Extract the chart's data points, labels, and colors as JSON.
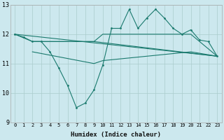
{
  "xlabel": "Humidex (Indice chaleur)",
  "xlim": [
    -0.5,
    23.5
  ],
  "ylim": [
    9,
    13
  ],
  "yticks": [
    9,
    10,
    11,
    12,
    13
  ],
  "xticks": [
    0,
    1,
    2,
    3,
    4,
    5,
    6,
    7,
    8,
    9,
    10,
    11,
    12,
    13,
    14,
    15,
    16,
    17,
    18,
    19,
    20,
    21,
    22,
    23
  ],
  "bg_color": "#cce8ee",
  "grid_color": "#aacccc",
  "line_color": "#1a7a6e",
  "curve_x": [
    0,
    1,
    2,
    3,
    4,
    5,
    6,
    7,
    8,
    9,
    10,
    11,
    12,
    13,
    14,
    15,
    16,
    17,
    18,
    19,
    20,
    21,
    22,
    23
  ],
  "curve_y": [
    12.0,
    11.9,
    11.75,
    11.75,
    11.4,
    10.85,
    10.25,
    9.5,
    9.65,
    10.1,
    10.95,
    12.2,
    12.2,
    12.85,
    12.2,
    12.55,
    12.85,
    12.55,
    12.2,
    12.0,
    12.15,
    11.8,
    11.75,
    11.25
  ],
  "line1_x": [
    0,
    23
  ],
  "line1_y": [
    12.0,
    11.25
  ],
  "line2_x": [
    0,
    2,
    9,
    23
  ],
  "line2_y": [
    12.0,
    11.75,
    11.75,
    11.25
  ],
  "line3_x": [
    2,
    9,
    10,
    20,
    23
  ],
  "line3_y": [
    11.75,
    11.75,
    12.0,
    12.0,
    11.25
  ],
  "line4_x": [
    2,
    9,
    10,
    20,
    23
  ],
  "line4_y": [
    11.4,
    11.0,
    11.1,
    11.4,
    11.25
  ]
}
